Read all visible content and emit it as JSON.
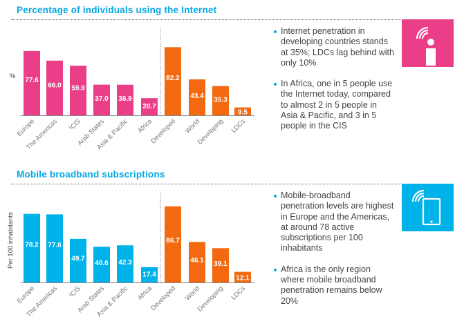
{
  "colors": {
    "regions_internet": "#ea3f88",
    "regions_mobile": "#00b2ea",
    "development": "#f2690f",
    "title": "#00a7e1"
  },
  "chart_data": [
    {
      "type": "bar",
      "title": "Percentage of individuals using the Internet",
      "ylabel": "%",
      "xlabel": "",
      "categories": [
        "Europe",
        "The Americas",
        "¹CIS",
        "Arab States",
        "Asia & Pacific",
        "Africa",
        "Developed",
        "World",
        "Developing",
        "LDCs"
      ],
      "values": [
        77.6,
        66.0,
        59.9,
        37.0,
        36.9,
        20.7,
        82.2,
        43.4,
        35.3,
        9.5
      ],
      "groups": [
        "region",
        "region",
        "region",
        "region",
        "region",
        "region",
        "development",
        "development",
        "development",
        "development"
      ],
      "ylim": [
        0,
        100
      ],
      "grid": false
    },
    {
      "type": "bar",
      "title": "Mobile broadband subscriptions",
      "ylabel": "Per 100 inhabitants",
      "xlabel": "",
      "categories": [
        "Europe",
        "The Americas",
        "¹CIS",
        "Arab States",
        "Asia & Pacific",
        "Africa",
        "Developed",
        "World",
        "Developing",
        "LDCs"
      ],
      "values": [
        78.2,
        77.6,
        49.7,
        40.6,
        42.3,
        17.4,
        86.7,
        46.1,
        39.1,
        12.1
      ],
      "groups": [
        "region",
        "region",
        "region",
        "region",
        "region",
        "region",
        "development",
        "development",
        "development",
        "development"
      ],
      "ylim": [
        0,
        100
      ],
      "grid": false
    }
  ],
  "notes": {
    "internet": [
      "Internet penetration in developing countries stands at 35%; LDCs lag behind with only 10%",
      "In Africa, one in 5 people use the Internet today, compared to almost 2 in 5 people in Asia & Pacific, and 3 in 5 people in the CIS"
    ],
    "mobile": [
      "Mobile-broadband penetration levels are highest in Europe and the Americas, at around 78 active subscriptions per 100 inhabitants",
      "Africa is the only region where mobile broadband penetration remains below 20%"
    ]
  },
  "icons": {
    "internet": "wifi-person-icon",
    "mobile": "wifi-smartphone-icon"
  }
}
